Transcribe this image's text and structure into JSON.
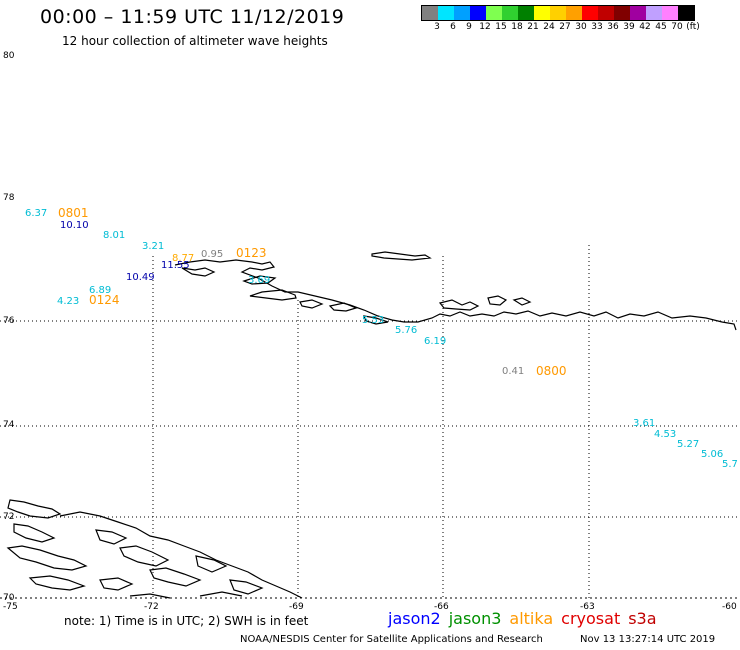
{
  "header": {
    "title": "00:00 – 11:59 UTC 11/12/2019",
    "subtitle": "12 hour collection of altimeter wave heights"
  },
  "legend": {
    "colors": [
      "#808080",
      "#00e5ff",
      "#00a0ff",
      "#0000ff",
      "#7fff50",
      "#30d030",
      "#008000",
      "#ffff00",
      "#ffd000",
      "#ffa000",
      "#ff0000",
      "#c00000",
      "#800000",
      "#a000a0",
      "#c0a0ff",
      "#ff80ff",
      "#000000"
    ],
    "labels": [
      "3",
      "6",
      "9",
      "12",
      "15",
      "18",
      "21",
      "24",
      "27",
      "30",
      "33",
      "36",
      "39",
      "42",
      "45",
      "70",
      "(ft)"
    ]
  },
  "axes": {
    "lat_labels": [
      "80",
      "78",
      "76",
      "74",
      "72",
      "70"
    ],
    "lon_labels": [
      "-75",
      "-72",
      "-69",
      "-66",
      "-63",
      "-60"
    ]
  },
  "observations": [
    {
      "text": "6.37",
      "color": "#00bcd4"
    },
    {
      "text": "0801",
      "color": "#ff9900"
    },
    {
      "text": "10.10",
      "color": "#0000aa"
    },
    {
      "text": "8.01",
      "color": "#00bcd4"
    },
    {
      "text": "3.21",
      "color": "#00bcd4"
    },
    {
      "text": "8.77",
      "color": "#ffaa00"
    },
    {
      "text": "0.95",
      "color": "#808080"
    },
    {
      "text": "0123",
      "color": "#ff9900"
    },
    {
      "text": "11.55",
      "color": "#0000aa"
    },
    {
      "text": "10.49",
      "color": "#0000aa"
    },
    {
      "text": "3.69",
      "color": "#00bcd4"
    },
    {
      "text": "6.89",
      "color": "#00bcd4"
    },
    {
      "text": "4.23",
      "color": "#00bcd4"
    },
    {
      "text": "0124",
      "color": "#ff9900"
    },
    {
      "text": "5.53",
      "color": "#00bcd4"
    },
    {
      "text": "5.76",
      "color": "#00bcd4"
    },
    {
      "text": "6.19",
      "color": "#00bcd4"
    },
    {
      "text": "0.41",
      "color": "#808080"
    },
    {
      "text": "0800",
      "color": "#ff9900"
    },
    {
      "text": "3.61",
      "color": "#00bcd4"
    },
    {
      "text": "4.53",
      "color": "#00bcd4"
    },
    {
      "text": "5.27",
      "color": "#00bcd4"
    },
    {
      "text": "5.06",
      "color": "#00bcd4"
    },
    {
      "text": "5.7",
      "color": "#00bcd4"
    }
  ],
  "note": "note:  1) Time is in UTC;  2) SWH is in feet",
  "satellites": [
    {
      "name": "jason2",
      "color": "#0000ff"
    },
    {
      "name": "jason3",
      "color": "#009000"
    },
    {
      "name": "altika",
      "color": "#ff9900"
    },
    {
      "name": "cryosat",
      "color": "#e00000"
    },
    {
      "name": "s3a",
      "color": "#c00000"
    }
  ],
  "footer": {
    "left": "NOAA/NESDIS Center for Satellite Applications and Research",
    "right": "Nov 13 13:27:14 UTC 2019"
  }
}
